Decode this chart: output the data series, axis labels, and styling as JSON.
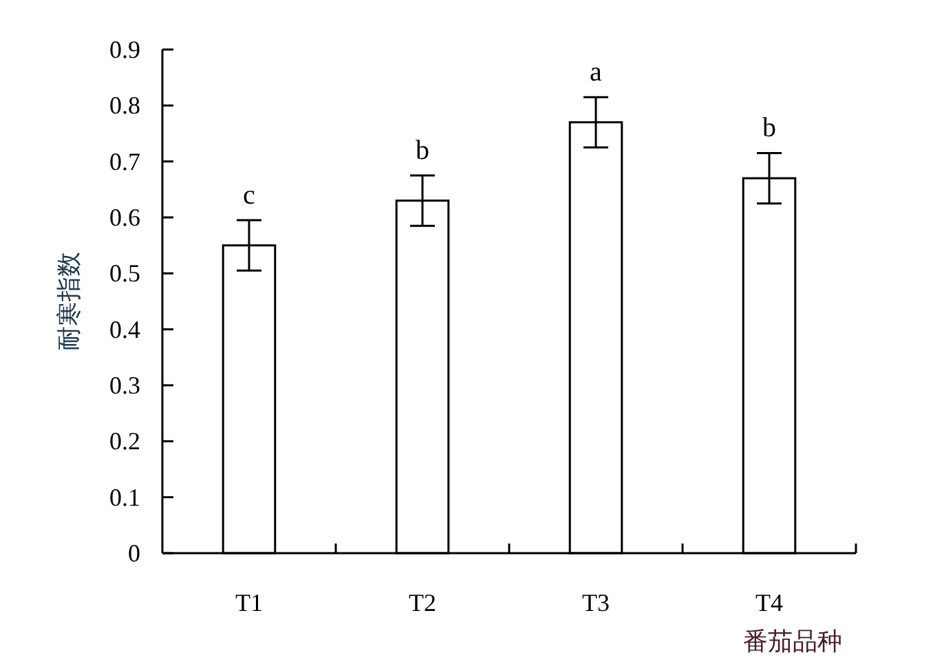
{
  "chart_data": {
    "type": "bar",
    "categories": [
      "T1",
      "T2",
      "T3",
      "T4"
    ],
    "values": [
      0.55,
      0.63,
      0.77,
      0.67
    ],
    "errors": [
      0.045,
      0.045,
      0.045,
      0.045
    ],
    "color": "#ffffff",
    "ylabel": "耐寒指数",
    "xlabel": "番茄品种",
    "ylim": [
      0,
      0.9
    ],
    "yticks": [
      0,
      0.1,
      0.2,
      0.3,
      0.4,
      0.5,
      0.6,
      0.7,
      0.8,
      0.9
    ],
    "annotations": [
      {
        "text": "c",
        "x": "T1",
        "y": 0.595
      },
      {
        "text": "b",
        "x": "T2",
        "y": 0.675
      },
      {
        "text": "a",
        "x": "T3",
        "y": 0.815
      },
      {
        "text": "b",
        "x": "T4",
        "y": 0.715
      }
    ],
    "grid": false
  }
}
